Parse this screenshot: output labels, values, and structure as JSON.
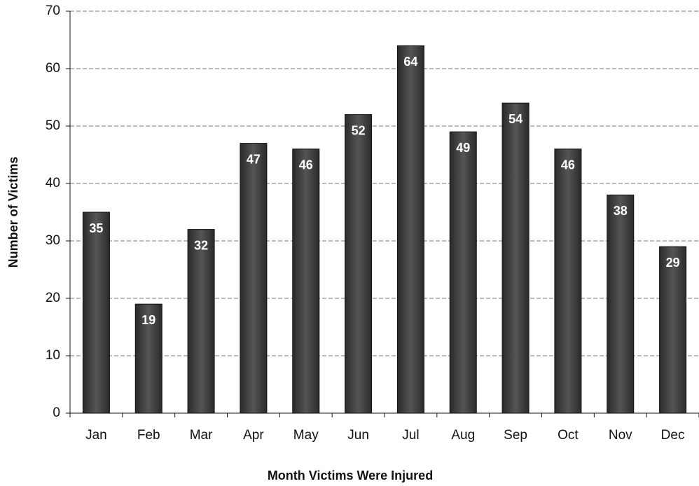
{
  "chart_data": {
    "type": "bar",
    "x_label": "Month Victims Were Injured",
    "y_label": "Number of Victims",
    "categories": [
      "Jan",
      "Feb",
      "Mar",
      "Apr",
      "May",
      "Jun",
      "Jul",
      "Aug",
      "Sep",
      "Oct",
      "Nov",
      "Dec"
    ],
    "values": [
      35,
      19,
      32,
      47,
      46,
      52,
      64,
      49,
      54,
      46,
      38,
      29
    ],
    "color": "#3a3a3a",
    "ylim": [
      0,
      70
    ],
    "yticks": [
      0,
      10,
      20,
      30,
      40,
      50,
      60,
      70
    ],
    "grid": true
  }
}
